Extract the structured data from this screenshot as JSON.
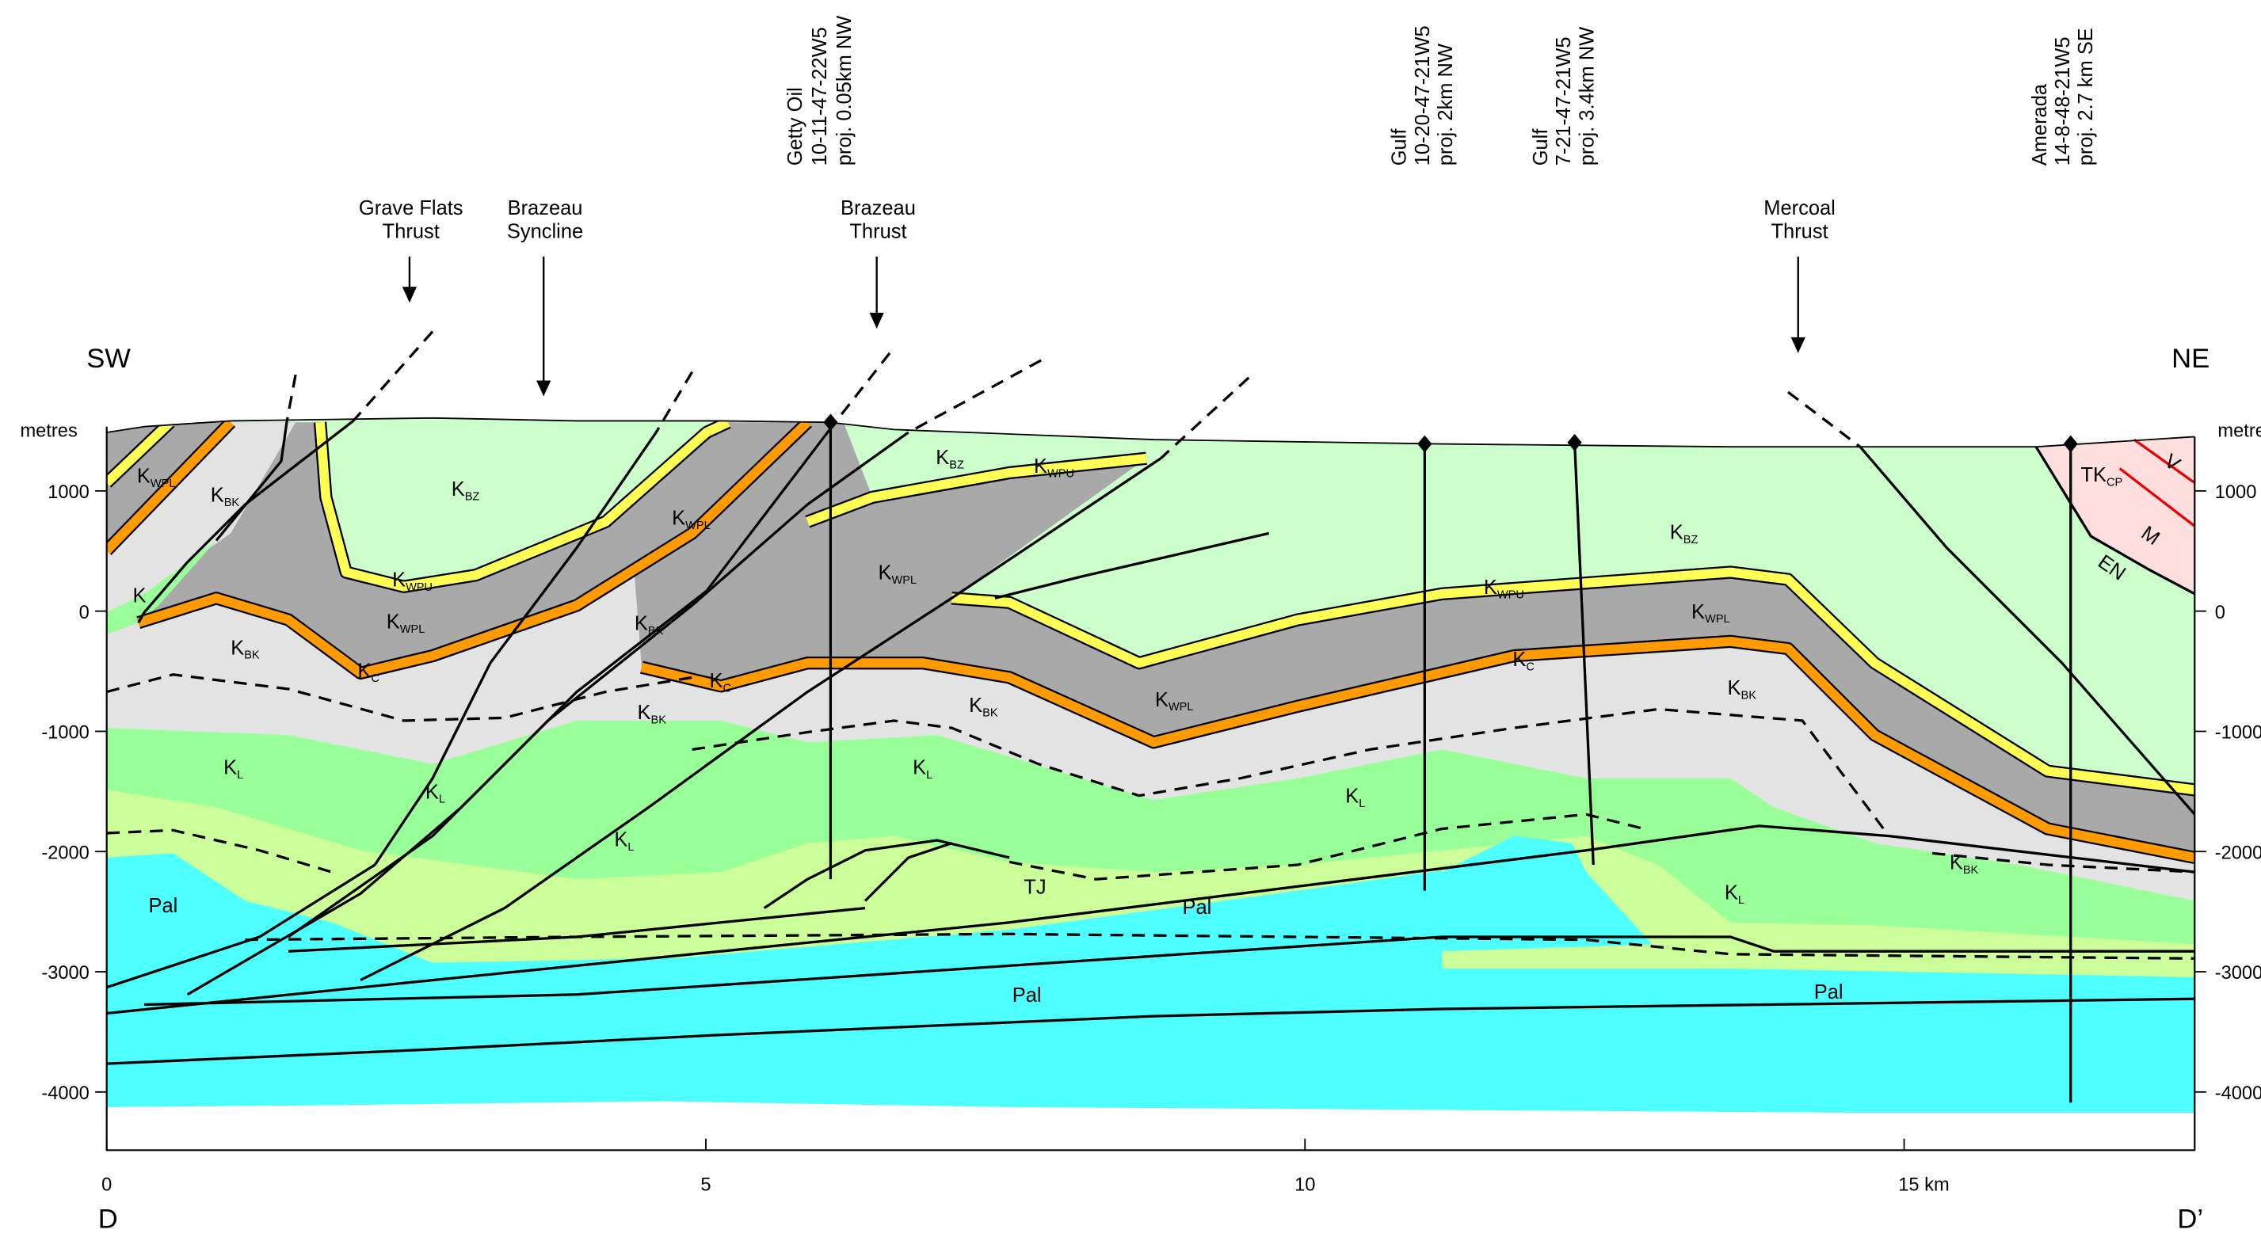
{
  "orientation": {
    "left": "SW",
    "right": "NE"
  },
  "section_ends": {
    "left": "D",
    "right": "D’"
  },
  "depth_axis": {
    "unit": "metres",
    "ticks": [
      1000,
      0,
      -1000,
      -2000,
      -3000,
      -4000
    ]
  },
  "distance_axis": {
    "ticks": [
      0,
      5,
      10,
      {
        "value": 15,
        "label": "15 km"
      }
    ]
  },
  "structures": [
    {
      "lines": [
        "Grave Flats",
        "Thrust"
      ]
    },
    {
      "lines": [
        "Brazeau",
        "Syncline"
      ]
    },
    {
      "lines": [
        "Brazeau",
        "Thrust"
      ]
    },
    {
      "lines": [
        "Mercoal",
        "Thrust"
      ]
    }
  ],
  "wells": [
    {
      "lines": [
        "Getty Oil",
        "10-11-47-22W5",
        "proj. 0.05km NW"
      ]
    },
    {
      "lines": [
        "Gulf",
        "10-20-47-21W5",
        "proj. 2km NW"
      ]
    },
    {
      "lines": [
        "Gulf",
        "7-21-47-21W5",
        "proj. 3.4km NW"
      ]
    },
    {
      "lines": [
        "Amerada",
        "14-8-48-21W5",
        "proj. 2.7 km SE"
      ]
    }
  ],
  "units": [
    {
      "main": "K",
      "sub": "WPL"
    },
    {
      "main": "K",
      "sub": "BK"
    },
    {
      "main": "K",
      "sub": "BZ"
    },
    {
      "main": "K",
      "sub": "WPL"
    },
    {
      "main": "K",
      "sub": "BZ"
    },
    {
      "main": "K",
      "sub": "WPU"
    },
    {
      "main": "K",
      "sub": "BZ"
    },
    {
      "main": "TK",
      "sub": "CP"
    },
    {
      "main": "K",
      "sub": "WPU"
    },
    {
      "main": "K",
      "sub": "WPL"
    },
    {
      "main": "K",
      "sub": "WPL"
    },
    {
      "main": "K"
    },
    {
      "main": "K",
      "sub": "BK"
    },
    {
      "main": "K",
      "sub": "BK"
    },
    {
      "main": "K",
      "sub": "C"
    },
    {
      "main": "K",
      "sub": "C"
    },
    {
      "main": "K",
      "sub": "WPU"
    },
    {
      "main": "K",
      "sub": "WPL"
    },
    {
      "main": "K",
      "sub": "C"
    },
    {
      "main": "K",
      "sub": "BK"
    },
    {
      "main": "K",
      "sub": "BK"
    },
    {
      "main": "K",
      "sub": "WPL"
    },
    {
      "main": "K",
      "sub": "BK"
    },
    {
      "main": "K",
      "sub": "L"
    },
    {
      "main": "K",
      "sub": "L"
    },
    {
      "main": "K",
      "sub": "L"
    },
    {
      "main": "K",
      "sub": "L"
    },
    {
      "main": "K",
      "sub": "L"
    },
    {
      "main": "K",
      "sub": "BK"
    },
    {
      "main": "TJ"
    },
    {
      "main": "K",
      "sub": "L"
    },
    {
      "main": "Pal"
    },
    {
      "main": "Pal"
    },
    {
      "main": "Pal"
    },
    {
      "main": "Pal"
    },
    {
      "main": "V"
    },
    {
      "main": "M"
    },
    {
      "main": "EN"
    }
  ]
}
